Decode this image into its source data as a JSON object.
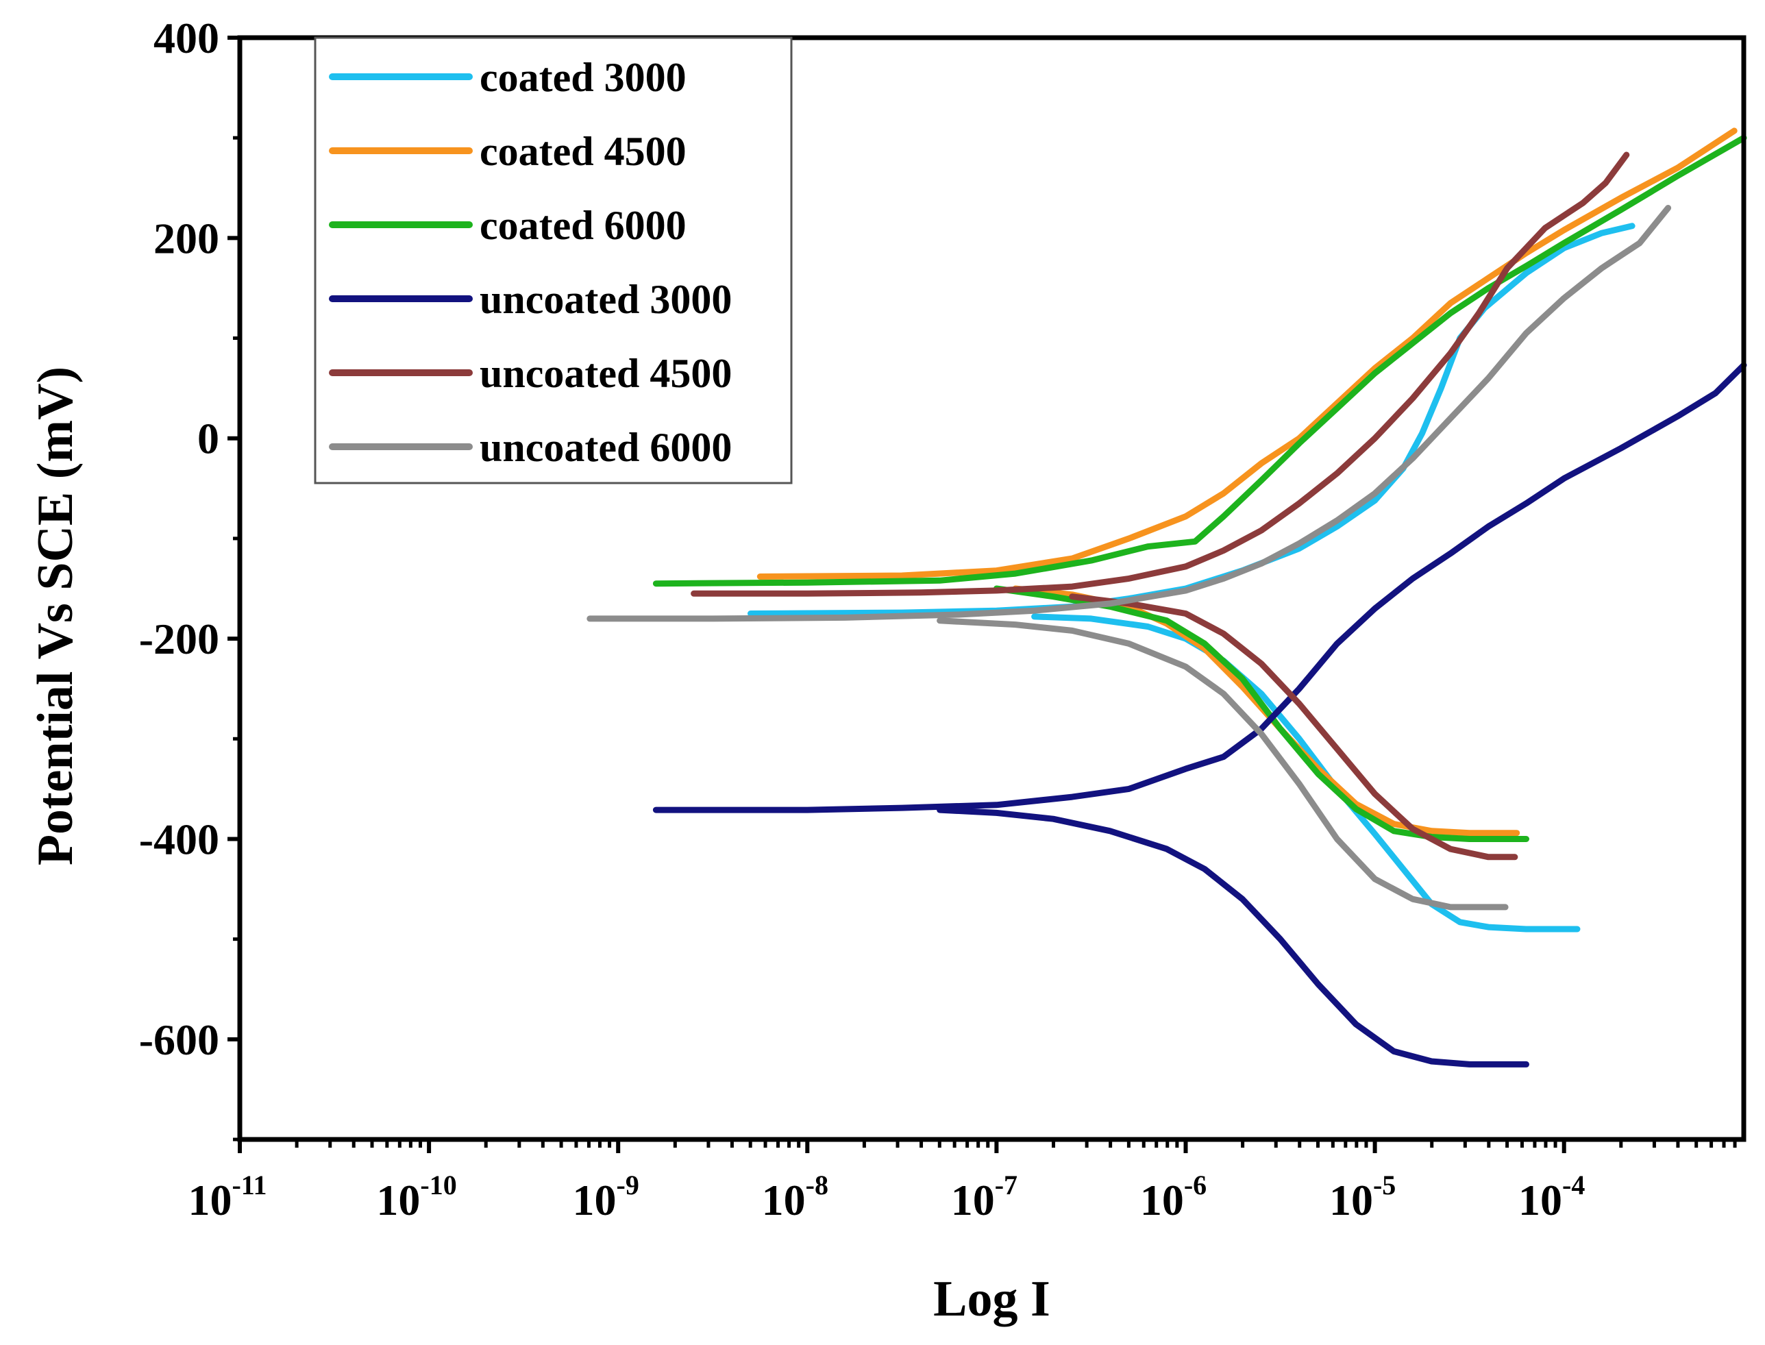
{
  "chart_data": {
    "type": "line",
    "title": "",
    "xlabel": "Log I",
    "ylabel": "Potential Vs SCE (mV)",
    "xscale": "log",
    "xlim_exp": [
      -11,
      -3.05
    ],
    "ylim": [
      -700,
      400
    ],
    "y_ticks": [
      -600,
      -400,
      -200,
      0,
      200,
      400
    ],
    "y_tick_labels": [
      "-600",
      "-400",
      "-200",
      "0",
      "200",
      "400"
    ],
    "x_ticks": [
      {
        "base": "10",
        "exp": "-11",
        "value": -11
      },
      {
        "base": "10",
        "exp": "-10",
        "value": -10
      },
      {
        "base": "10",
        "exp": "-9",
        "value": -9
      },
      {
        "base": "10",
        "exp": "-8",
        "value": -8
      },
      {
        "base": "10",
        "exp": "-7",
        "value": -7
      },
      {
        "base": "10",
        "exp": "-6",
        "value": -6
      },
      {
        "base": "10",
        "exp": "-5",
        "value": -5
      },
      {
        "base": "10",
        "exp": "-4",
        "value": -4
      }
    ],
    "legend_position": "top-left",
    "series": [
      {
        "name": "coated 3000",
        "color": "#1EBFEF",
        "anodic": [
          [
            -8.3,
            -175
          ],
          [
            -7.5,
            -174
          ],
          [
            -7,
            -172
          ],
          [
            -6.6,
            -168
          ],
          [
            -6.3,
            -160
          ],
          [
            -6,
            -150
          ],
          [
            -5.7,
            -132
          ],
          [
            -5.4,
            -110
          ],
          [
            -5.2,
            -88
          ],
          [
            -5.0,
            -62
          ],
          [
            -4.85,
            -30
          ],
          [
            -4.75,
            5
          ],
          [
            -4.65,
            50
          ],
          [
            -4.55,
            100
          ],
          [
            -4.42,
            130
          ],
          [
            -4.2,
            165
          ],
          [
            -4.0,
            190
          ],
          [
            -3.8,
            205
          ],
          [
            -3.64,
            212
          ]
        ],
        "cathodic": [
          [
            -6.8,
            -178
          ],
          [
            -6.5,
            -180
          ],
          [
            -6.2,
            -188
          ],
          [
            -6.0,
            -200
          ],
          [
            -5.8,
            -222
          ],
          [
            -5.6,
            -255
          ],
          [
            -5.4,
            -300
          ],
          [
            -5.2,
            -350
          ],
          [
            -5.0,
            -395
          ],
          [
            -4.85,
            -430
          ],
          [
            -4.7,
            -465
          ],
          [
            -4.55,
            -483
          ],
          [
            -4.4,
            -488
          ],
          [
            -4.2,
            -490
          ],
          [
            -3.93,
            -490
          ]
        ]
      },
      {
        "name": "coated 4500",
        "color": "#F7931E",
        "anodic": [
          [
            -8.25,
            -138
          ],
          [
            -7.5,
            -137
          ],
          [
            -7,
            -132
          ],
          [
            -6.6,
            -120
          ],
          [
            -6.3,
            -100
          ],
          [
            -6.0,
            -78
          ],
          [
            -5.8,
            -55
          ],
          [
            -5.6,
            -25
          ],
          [
            -5.4,
            0
          ],
          [
            -5.2,
            35
          ],
          [
            -5.0,
            70
          ],
          [
            -4.8,
            100
          ],
          [
            -4.6,
            135
          ],
          [
            -4.4,
            160
          ],
          [
            -4.2,
            185
          ],
          [
            -4.0,
            208
          ],
          [
            -3.7,
            240
          ],
          [
            -3.4,
            270
          ],
          [
            -3.1,
            307
          ]
        ],
        "cathodic": [
          [
            -6.9,
            -150
          ],
          [
            -6.6,
            -156
          ],
          [
            -6.3,
            -168
          ],
          [
            -6.1,
            -185
          ],
          [
            -5.9,
            -210
          ],
          [
            -5.7,
            -248
          ],
          [
            -5.5,
            -290
          ],
          [
            -5.3,
            -330
          ],
          [
            -5.1,
            -365
          ],
          [
            -4.9,
            -385
          ],
          [
            -4.7,
            -392
          ],
          [
            -4.5,
            -394
          ],
          [
            -4.25,
            -394
          ]
        ]
      },
      {
        "name": "coated 6000",
        "color": "#1DB31D",
        "anodic": [
          [
            -8.8,
            -145
          ],
          [
            -8,
            -144
          ],
          [
            -7.3,
            -142
          ],
          [
            -6.9,
            -135
          ],
          [
            -6.5,
            -122
          ],
          [
            -6.2,
            -108
          ],
          [
            -5.95,
            -103
          ],
          [
            -5.8,
            -78
          ],
          [
            -5.6,
            -42
          ],
          [
            -5.4,
            -5
          ],
          [
            -5.2,
            30
          ],
          [
            -5.0,
            65
          ],
          [
            -4.8,
            95
          ],
          [
            -4.6,
            125
          ],
          [
            -4.4,
            150
          ],
          [
            -4.2,
            172
          ],
          [
            -4.0,
            195
          ],
          [
            -3.7,
            228
          ],
          [
            -3.4,
            262
          ],
          [
            -3.05,
            300
          ]
        ],
        "cathodic": [
          [
            -7.0,
            -150
          ],
          [
            -6.7,
            -158
          ],
          [
            -6.4,
            -168
          ],
          [
            -6.1,
            -182
          ],
          [
            -5.9,
            -205
          ],
          [
            -5.7,
            -240
          ],
          [
            -5.5,
            -290
          ],
          [
            -5.3,
            -335
          ],
          [
            -5.1,
            -370
          ],
          [
            -4.9,
            -392
          ],
          [
            -4.7,
            -398
          ],
          [
            -4.5,
            -400
          ],
          [
            -4.2,
            -400
          ]
        ]
      },
      {
        "name": "uncoated 3000",
        "color": "#12127F",
        "anodic": [
          [
            -8.8,
            -371
          ],
          [
            -8,
            -371
          ],
          [
            -7.5,
            -369
          ],
          [
            -7.0,
            -366
          ],
          [
            -6.6,
            -358
          ],
          [
            -6.3,
            -350
          ],
          [
            -6.0,
            -330
          ],
          [
            -5.8,
            -318
          ],
          [
            -5.6,
            -290
          ],
          [
            -5.4,
            -250
          ],
          [
            -5.2,
            -205
          ],
          [
            -5.0,
            -170
          ],
          [
            -4.8,
            -140
          ],
          [
            -4.6,
            -115
          ],
          [
            -4.4,
            -88
          ],
          [
            -4.2,
            -65
          ],
          [
            -4.0,
            -40
          ],
          [
            -3.7,
            -10
          ],
          [
            -3.4,
            22
          ],
          [
            -3.2,
            45
          ],
          [
            -3.05,
            73
          ]
        ],
        "cathodic": [
          [
            -7.3,
            -371
          ],
          [
            -7.0,
            -374
          ],
          [
            -6.7,
            -380
          ],
          [
            -6.4,
            -392
          ],
          [
            -6.1,
            -410
          ],
          [
            -5.9,
            -430
          ],
          [
            -5.7,
            -460
          ],
          [
            -5.5,
            -500
          ],
          [
            -5.3,
            -545
          ],
          [
            -5.1,
            -585
          ],
          [
            -4.9,
            -612
          ],
          [
            -4.7,
            -622
          ],
          [
            -4.5,
            -625
          ],
          [
            -4.2,
            -625
          ]
        ]
      },
      {
        "name": "uncoated 4500",
        "color": "#8C3B3B",
        "anodic": [
          [
            -8.6,
            -155
          ],
          [
            -8,
            -155
          ],
          [
            -7.4,
            -154
          ],
          [
            -7,
            -152
          ],
          [
            -6.6,
            -148
          ],
          [
            -6.3,
            -140
          ],
          [
            -6.0,
            -128
          ],
          [
            -5.8,
            -112
          ],
          [
            -5.6,
            -92
          ],
          [
            -5.4,
            -65
          ],
          [
            -5.2,
            -35
          ],
          [
            -5.0,
            0
          ],
          [
            -4.8,
            40
          ],
          [
            -4.6,
            85
          ],
          [
            -4.45,
            125
          ],
          [
            -4.3,
            170
          ],
          [
            -4.1,
            210
          ],
          [
            -3.9,
            235
          ],
          [
            -3.78,
            255
          ],
          [
            -3.67,
            283
          ]
        ],
        "cathodic": [
          [
            -6.6,
            -158
          ],
          [
            -6.3,
            -165
          ],
          [
            -6.0,
            -175
          ],
          [
            -5.8,
            -195
          ],
          [
            -5.6,
            -225
          ],
          [
            -5.4,
            -265
          ],
          [
            -5.2,
            -310
          ],
          [
            -5.0,
            -355
          ],
          [
            -4.8,
            -390
          ],
          [
            -4.6,
            -410
          ],
          [
            -4.4,
            -418
          ],
          [
            -4.26,
            -418
          ]
        ]
      },
      {
        "name": "uncoated 6000",
        "color": "#8C8C8C",
        "anodic": [
          [
            -9.15,
            -180
          ],
          [
            -8.5,
            -180
          ],
          [
            -7.8,
            -179
          ],
          [
            -7.2,
            -176
          ],
          [
            -6.8,
            -172
          ],
          [
            -6.4,
            -165
          ],
          [
            -6.0,
            -152
          ],
          [
            -5.8,
            -140
          ],
          [
            -5.6,
            -125
          ],
          [
            -5.4,
            -105
          ],
          [
            -5.2,
            -82
          ],
          [
            -5.0,
            -55
          ],
          [
            -4.8,
            -20
          ],
          [
            -4.6,
            20
          ],
          [
            -4.4,
            60
          ],
          [
            -4.2,
            105
          ],
          [
            -4.0,
            140
          ],
          [
            -3.8,
            170
          ],
          [
            -3.6,
            195
          ],
          [
            -3.45,
            230
          ]
        ],
        "cathodic": [
          [
            -7.3,
            -182
          ],
          [
            -6.9,
            -186
          ],
          [
            -6.6,
            -192
          ],
          [
            -6.3,
            -205
          ],
          [
            -6.0,
            -228
          ],
          [
            -5.8,
            -255
          ],
          [
            -5.6,
            -295
          ],
          [
            -5.4,
            -345
          ],
          [
            -5.2,
            -400
          ],
          [
            -5.0,
            -440
          ],
          [
            -4.8,
            -460
          ],
          [
            -4.6,
            -468
          ],
          [
            -4.31,
            -468
          ]
        ]
      }
    ]
  }
}
